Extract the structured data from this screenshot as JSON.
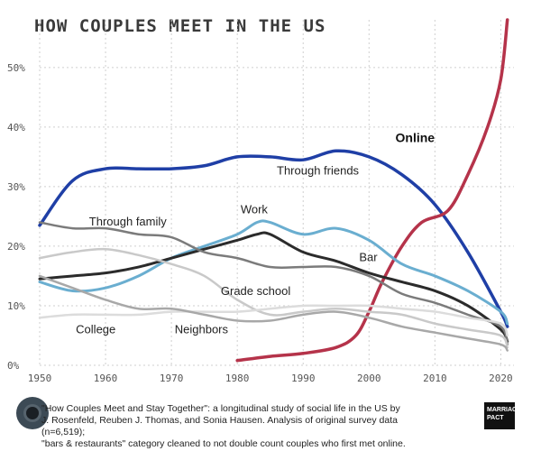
{
  "title": "HOW COUPLES MEET IN THE US",
  "footer": {
    "line1": "\"How Couples Meet and Stay Together\": a longitudinal study of social life in the US by",
    "line2": "J. Rosenfeld, Reuben J. Thomas, and Sonia Hausen. Analysis of original survey data (n=6,519);",
    "line3": "\"bars & restaurants\" category cleaned to not double count couples who first met online."
  },
  "logo_text": "MARRIAGE PACT",
  "chart_data": {
    "type": "line",
    "title": "HOW COUPLES MEET IN THE US",
    "xlabel": "",
    "ylabel": "",
    "xlim": [
      1950,
      2022
    ],
    "ylim": [
      0,
      58
    ],
    "x_ticks": [
      1950,
      1960,
      1970,
      1980,
      1990,
      2000,
      2010,
      2020
    ],
    "x_tick_labels": [
      "1950",
      "1960",
      "1970",
      "1980",
      "1990",
      "2000",
      "2010",
      "2020"
    ],
    "y_ticks": [
      0,
      10,
      20,
      30,
      40,
      50
    ],
    "y_tick_labels": [
      "0%",
      "10%",
      "20%",
      "30%",
      "40%",
      "50%"
    ],
    "grid": true,
    "series": [
      {
        "name": "Through friends",
        "color": "#1f3fa6",
        "width": 3.5,
        "x": [
          1950,
          1955,
          1960,
          1965,
          1970,
          1975,
          1980,
          1985,
          1990,
          1995,
          2000,
          2005,
          2010,
          2015,
          2020,
          2021
        ],
        "y": [
          23.5,
          31,
          33,
          33,
          33,
          33.5,
          35,
          35,
          34.5,
          36,
          35,
          32,
          27,
          19,
          9,
          6.5
        ]
      },
      {
        "name": "Online",
        "color": "#b5334a",
        "width": 3.5,
        "x": [
          1980,
          1985,
          1990,
          1995,
          1998,
          2000,
          2002,
          2005,
          2008,
          2012,
          2015,
          2018,
          2020,
          2021
        ],
        "y": [
          0.8,
          1.5,
          2,
          3,
          5,
          9,
          14,
          20,
          24,
          26,
          32,
          40,
          48,
          58
        ]
      },
      {
        "name": "Work",
        "color": "#6aaed0",
        "width": 3,
        "x": [
          1950,
          1955,
          1960,
          1965,
          1970,
          1975,
          1980,
          1983,
          1985,
          1990,
          1995,
          2000,
          2005,
          2010,
          2015,
          2020,
          2021
        ],
        "y": [
          14,
          12.5,
          13,
          15,
          18,
          20,
          22,
          24,
          24,
          22,
          23,
          21,
          17,
          15,
          12.5,
          9,
          7
        ]
      },
      {
        "name": "Bar",
        "color": "#2b2b2b",
        "width": 3,
        "x": [
          1950,
          1955,
          1960,
          1965,
          1970,
          1975,
          1980,
          1983,
          1985,
          1990,
          1995,
          2000,
          2005,
          2010,
          2015,
          2020,
          2021
        ],
        "y": [
          14.5,
          15,
          15.5,
          16.5,
          18,
          19.5,
          21,
          22,
          22,
          19,
          17.5,
          15.5,
          14,
          12.5,
          10,
          6,
          4
        ]
      },
      {
        "name": "Through family",
        "color": "#7b7b7b",
        "width": 2.5,
        "x": [
          1950,
          1955,
          1960,
          1965,
          1970,
          1975,
          1980,
          1985,
          1990,
          1995,
          2000,
          2005,
          2010,
          2015,
          2020,
          2021
        ],
        "y": [
          24,
          23,
          23,
          22,
          21.5,
          19,
          18,
          16.5,
          16.5,
          16.5,
          15,
          12,
          10.5,
          8.5,
          6.5,
          3.5
        ]
      },
      {
        "name": "Grade school",
        "color": "#c9c9c9",
        "width": 2.5,
        "x": [
          1950,
          1955,
          1960,
          1965,
          1970,
          1975,
          1980,
          1985,
          1990,
          1995,
          2000,
          2005,
          2010,
          2015,
          2020,
          2021
        ],
        "y": [
          18,
          19,
          19.5,
          18.5,
          17,
          15,
          11,
          8.5,
          9,
          9.5,
          9,
          8.5,
          7,
          6,
          5,
          3
        ]
      },
      {
        "name": "College",
        "color": "#dcdcdc",
        "width": 2.5,
        "x": [
          1950,
          1955,
          1960,
          1965,
          1970,
          1975,
          1980,
          1985,
          1990,
          1995,
          2000,
          2005,
          2010,
          2015,
          2020,
          2021
        ],
        "y": [
          8,
          8.5,
          8.5,
          8.5,
          9,
          9,
          9,
          9.5,
          10,
          10,
          10,
          9.5,
          9,
          8,
          7,
          5
        ]
      },
      {
        "name": "Neighbors",
        "color": "#a8a8a8",
        "width": 2.5,
        "x": [
          1950,
          1955,
          1960,
          1965,
          1970,
          1975,
          1980,
          1985,
          1990,
          1995,
          2000,
          2005,
          2010,
          2015,
          2020,
          2021
        ],
        "y": [
          15,
          13,
          11,
          9.5,
          9.5,
          8.5,
          7.5,
          7.5,
          8.5,
          9,
          8,
          6.5,
          5.5,
          4.5,
          3.5,
          2.5
        ]
      }
    ],
    "labels": [
      {
        "text": "Online",
        "x": 2004,
        "y": 37.5,
        "bold": true
      },
      {
        "text": "Through friends",
        "x": 1986,
        "y": 32,
        "bold": false
      },
      {
        "text": "Through family",
        "x": 1957.5,
        "y": 23.5,
        "bold": false
      },
      {
        "text": "Work",
        "x": 1980.5,
        "y": 25.5,
        "bold": false
      },
      {
        "text": "Bar",
        "x": 1998.5,
        "y": 17.5,
        "bold": false
      },
      {
        "text": "Grade school",
        "x": 1977.5,
        "y": 11.8,
        "bold": false
      },
      {
        "text": "College",
        "x": 1955.5,
        "y": 5.4,
        "bold": false
      },
      {
        "text": "Neighbors",
        "x": 1970.5,
        "y": 5.4,
        "bold": false
      }
    ]
  }
}
